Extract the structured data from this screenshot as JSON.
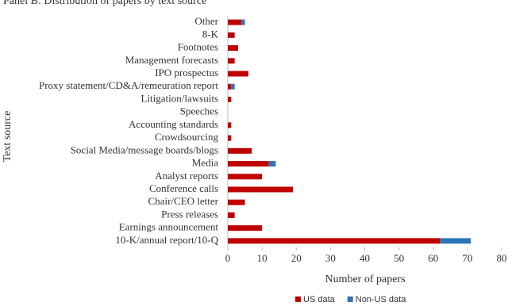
{
  "chart_data": {
    "type": "bar",
    "orientation": "horizontal",
    "stacked": true,
    "title": "Panel B: Distribution of papers by text source",
    "x_label": "Number of papers",
    "y_label": "Text source",
    "categories": [
      "Other",
      "8-K",
      "Footnotes",
      "Management forecasts",
      "IPO prospectus",
      "Proxy statement/CD&A/remeuration report",
      "Litigation/lawsuits",
      "Speeches",
      "Accounting standards",
      "Crowdsourcing",
      "Social Media/message boards/blogs",
      "Media",
      "Analyst reports",
      "Conference calls",
      "Chair/CEO letter",
      "Press releases",
      "Earnings announcement",
      "10-K/annual report/10-Q"
    ],
    "series": [
      {
        "name": "US data",
        "color": "#c00000",
        "values": [
          4,
          2,
          3,
          2,
          6,
          1,
          1,
          0,
          1,
          1,
          7,
          12,
          10,
          19,
          5,
          2,
          10,
          62
        ]
      },
      {
        "name": "Non-US data",
        "color": "#2e75b6",
        "values": [
          1,
          0,
          0,
          0,
          0,
          1,
          0,
          0,
          0,
          0,
          0,
          2,
          0,
          0,
          0,
          0,
          0,
          9
        ]
      }
    ],
    "xlim": [
      0,
      80
    ],
    "xticks": [
      0,
      10,
      20,
      30,
      40,
      50,
      60,
      70,
      80
    ],
    "grid": false,
    "legend": "bottom"
  }
}
